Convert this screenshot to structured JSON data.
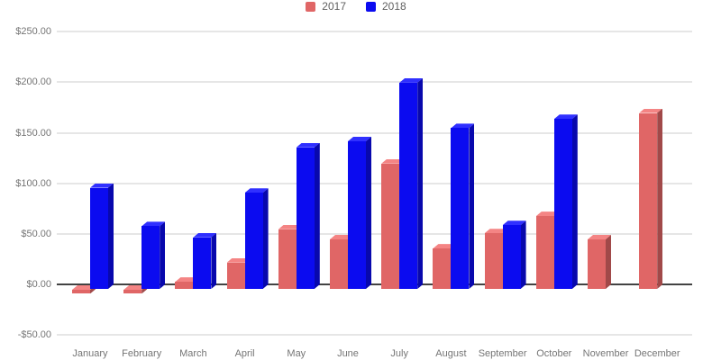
{
  "chart": {
    "background_color": "#ffffff",
    "axis_text_color": "#757575",
    "legend_text_color": "#616161",
    "gridline_color": "#e6e6e6",
    "zero_line_color": "#424242"
  },
  "legend": {
    "items": [
      {
        "label": "2017",
        "color": "#e06666"
      },
      {
        "label": "2018",
        "color": "#0b0bf0"
      }
    ]
  },
  "chart_data": {
    "type": "bar",
    "subtype": "3d-column",
    "title": "",
    "xlabel": "",
    "ylabel": "",
    "categories": [
      "January",
      "February",
      "March",
      "April",
      "May",
      "June",
      "July",
      "August",
      "September",
      "October",
      "November",
      "December"
    ],
    "series": [
      {
        "name": "2017",
        "color": "#e06666",
        "values": [
          -3,
          -3,
          7,
          26,
          59,
          49,
          124,
          40,
          55,
          72,
          49,
          174
        ]
      },
      {
        "name": "2018",
        "color": "#0b0bf0",
        "values": [
          100,
          62,
          51,
          95,
          140,
          146,
          204,
          159,
          63,
          168,
          null,
          null
        ]
      }
    ],
    "y_tick_labels": [
      "$250.00",
      "$200.00",
      "$150.00",
      "$100.00",
      "$50.00",
      "$0.00",
      "-$50.00"
    ],
    "y_tick_values": [
      250,
      200,
      150,
      100,
      50,
      0,
      -50
    ],
    "ylim": [
      -50,
      250
    ],
    "value_format": "currency-usd",
    "grid": true,
    "legend_position": "top"
  }
}
